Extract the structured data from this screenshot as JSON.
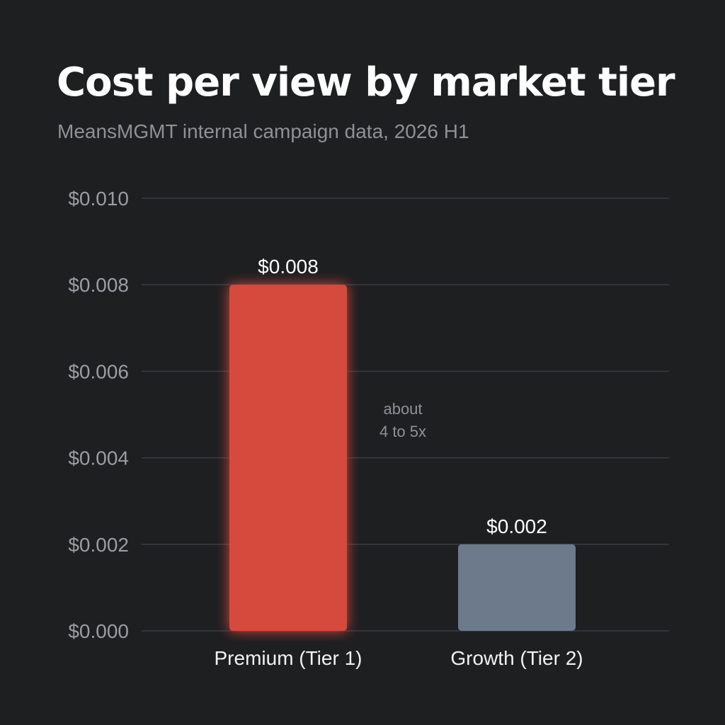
{
  "title": "Cost per view by market tier",
  "subtitle": "MeansMGMT internal campaign data, 2026 H1",
  "annotation": [
    "about",
    "4 to 5x"
  ],
  "colors": {
    "background": "#1e1f21",
    "premium_bar": "#d64a3e",
    "growth_bar": "#6c7a8c",
    "gridline": "#3a3c40"
  },
  "chart_data": {
    "type": "bar",
    "title": "Cost per view by market tier",
    "subtitle": "MeansMGMT internal campaign data, 2026 H1",
    "categories": [
      "Premium (Tier 1)",
      "Growth (Tier 2)"
    ],
    "values": [
      0.008,
      0.002
    ],
    "value_labels": [
      "$0.008",
      "$0.002"
    ],
    "bar_colors": [
      "#d64a3e",
      "#6c7a8c"
    ],
    "ylim": [
      0,
      0.01
    ],
    "yticks": [
      0.0,
      0.002,
      0.004,
      0.006,
      0.008,
      0.01
    ],
    "ytick_labels": [
      "$0.000",
      "$0.002",
      "$0.004",
      "$0.006",
      "$0.008",
      "$0.010"
    ],
    "xlabel": "",
    "ylabel": "",
    "grid": true,
    "annotation": "about 4 to 5x"
  }
}
